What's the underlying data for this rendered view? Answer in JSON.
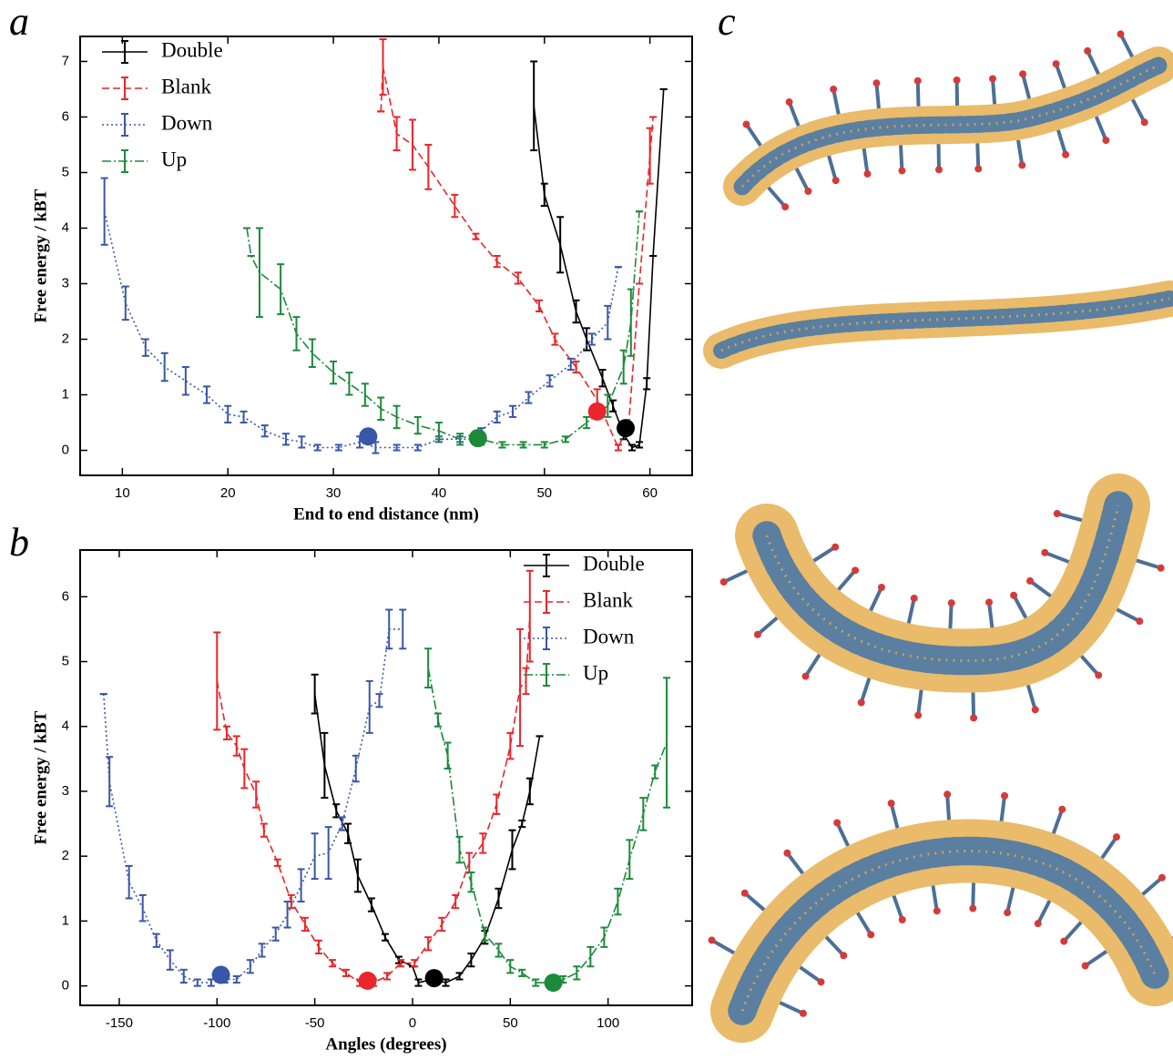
{
  "chart_data": [
    {
      "type": "line",
      "panel_label": "a",
      "xlabel": "End to end distance (nm)",
      "ylabel": "Free energy / kBT",
      "xlim": [
        6,
        64
      ],
      "ylim": [
        -0.45,
        7.45
      ],
      "xticks": [
        10,
        20,
        30,
        40,
        50,
        60
      ],
      "yticks": [
        0,
        1,
        2,
        3,
        4,
        5,
        6,
        7
      ],
      "legend": "upper left",
      "series": [
        {
          "name": "Double",
          "color": "#000000",
          "dash": "solid",
          "x": [
            49,
            50,
            51.5,
            53,
            54,
            55.5,
            56.5,
            57.5,
            58.3,
            59,
            59.7,
            60.3,
            61.3
          ],
          "values": [
            6.2,
            4.6,
            3.7,
            2.5,
            2.0,
            1.3,
            0.8,
            0.3,
            0.05,
            0.1,
            1.2,
            3.5,
            6.5
          ],
          "errors": [
            0.8,
            0.2,
            0.5,
            0.2,
            0.2,
            0.15,
            0.1,
            0.1,
            0.05,
            0.05,
            0.1,
            0,
            0
          ],
          "marker": {
            "x": 57.7,
            "y": 0.4
          }
        },
        {
          "name": "Blank",
          "color": "#e8262b",
          "dash": "dashed",
          "x": [
            34.5,
            34.7,
            36,
            37.5,
            39,
            41.5,
            43.5,
            45.5,
            47.5,
            49.5,
            51,
            53,
            55,
            57,
            58,
            59,
            60,
            60.3
          ],
          "values": [
            6.1,
            6.9,
            5.7,
            5.5,
            5.1,
            4.4,
            3.85,
            3.4,
            3.1,
            2.6,
            2.0,
            1.5,
            0.9,
            0.05,
            0.5,
            3.0,
            5.3,
            6.0
          ],
          "errors": [
            0,
            0.5,
            0.3,
            0.45,
            0.4,
            0.2,
            0.05,
            0.1,
            0.1,
            0.1,
            0.1,
            0.1,
            0.2,
            0.05,
            0,
            0,
            0.5,
            0
          ],
          "marker": {
            "x": 55,
            "y": 0.7
          }
        },
        {
          "name": "Down",
          "color": "#3a56a8",
          "dash": "dotted",
          "x": [
            8.3,
            10.3,
            12.2,
            14,
            16,
            18,
            20,
            21.5,
            23.5,
            25.5,
            27,
            28.5,
            30.5,
            32.5,
            34,
            36,
            38,
            40,
            42,
            44,
            45.5,
            47,
            48.5,
            50.5,
            52.5,
            54.5,
            56,
            57
          ],
          "values": [
            4.3,
            2.65,
            1.85,
            1.5,
            1.25,
            1.0,
            0.65,
            0.6,
            0.35,
            0.2,
            0.15,
            0.05,
            0.05,
            0.15,
            0.05,
            0.05,
            0.05,
            0.2,
            0.2,
            0.35,
            0.6,
            0.7,
            0.95,
            1.25,
            1.55,
            2.0,
            2.3,
            3.3
          ],
          "errors": [
            0.6,
            0.3,
            0.15,
            0.25,
            0.25,
            0.15,
            0.15,
            0.1,
            0.1,
            0.1,
            0.1,
            0.05,
            0.05,
            0.1,
            0.1,
            0.05,
            0.05,
            0.05,
            0.05,
            0.05,
            0.1,
            0.1,
            0.1,
            0.1,
            0.1,
            0.1,
            0.3,
            0
          ],
          "marker": {
            "x": 33.3,
            "y": 0.25
          }
        },
        {
          "name": "Up",
          "color": "#1d8a3a",
          "dash": "dashdot",
          "x": [
            21.8,
            22.2,
            23,
            25,
            26.5,
            28,
            30,
            31.5,
            33,
            34.5,
            36,
            38,
            40,
            42,
            44,
            46,
            48,
            50,
            52,
            54,
            56,
            57.5,
            58.2,
            59
          ],
          "values": [
            4.0,
            3.5,
            3.2,
            2.9,
            2.1,
            1.75,
            1.4,
            1.2,
            1.0,
            0.75,
            0.6,
            0.45,
            0.35,
            0.2,
            0.2,
            0.1,
            0.1,
            0.1,
            0.2,
            0.5,
            0.8,
            1.5,
            2.3,
            4.3
          ],
          "errors": [
            0,
            0,
            0.8,
            0.45,
            0.3,
            0.25,
            0.2,
            0.2,
            0.2,
            0.2,
            0.2,
            0.15,
            0.15,
            0.1,
            0.1,
            0.05,
            0.05,
            0.05,
            0.05,
            0.1,
            0.2,
            0.3,
            0.6,
            0
          ],
          "marker": {
            "x": 43.7,
            "y": 0.22
          }
        }
      ]
    },
    {
      "type": "line",
      "panel_label": "b",
      "xlabel": "Angles (degrees)",
      "ylabel": "Free energy / kBT",
      "xlim": [
        -170,
        143
      ],
      "ylim": [
        -0.3,
        6.72
      ],
      "xticks": [
        -150,
        -100,
        -50,
        0,
        50,
        100
      ],
      "yticks": [
        0,
        1,
        2,
        3,
        4,
        5,
        6
      ],
      "legend": "upper right",
      "series": [
        {
          "name": "Double",
          "color": "#000000",
          "dash": "solid",
          "x": [
            -50,
            -45,
            -39,
            -33,
            -28,
            -21,
            -14,
            -7,
            0,
            3,
            10,
            17,
            24,
            30,
            37,
            44,
            51,
            56,
            60,
            65
          ],
          "values": [
            4.5,
            3.4,
            2.7,
            2.35,
            1.7,
            1.25,
            0.75,
            0.4,
            0.3,
            0.05,
            0.1,
            0.05,
            0.15,
            0.4,
            0.75,
            1.35,
            2.1,
            2.5,
            3.0,
            3.85
          ],
          "errors": [
            0.3,
            0.5,
            0.1,
            0.15,
            0.25,
            0.1,
            0.05,
            0.05,
            0,
            0.05,
            0.05,
            0.05,
            0.05,
            0.1,
            0.1,
            0.15,
            0.3,
            0.05,
            0.2,
            0
          ],
          "marker": {
            "x": 11,
            "y": 0.12
          }
        },
        {
          "name": "Blank",
          "color": "#e8262b",
          "dash": "dashed",
          "x": [
            -100,
            -95,
            -90,
            -86,
            -80,
            -76,
            -69,
            -62,
            -55,
            -48,
            -41,
            -34,
            -27,
            -20,
            -13,
            -6,
            1,
            8,
            15,
            22,
            29,
            36,
            43,
            50,
            55,
            58,
            60
          ],
          "values": [
            4.7,
            3.9,
            3.7,
            3.35,
            2.95,
            2.4,
            1.9,
            1.3,
            0.95,
            0.6,
            0.35,
            0.2,
            0.05,
            0.05,
            0.15,
            0.35,
            0.35,
            0.65,
            0.95,
            1.3,
            1.9,
            2.2,
            2.8,
            3.7,
            4.6,
            4.7,
            5.7
          ],
          "errors": [
            0.75,
            0.1,
            0.15,
            0.3,
            0.2,
            0.1,
            0.05,
            0.1,
            0.1,
            0.1,
            0.05,
            0.05,
            0.05,
            0.05,
            0.05,
            0.05,
            0.05,
            0.1,
            0.1,
            0.1,
            0.15,
            0.15,
            0.15,
            0.2,
            0.9,
            0.2,
            0.7
          ],
          "marker": {
            "x": -23,
            "y": 0.08
          }
        },
        {
          "name": "Down",
          "color": "#3a56a8",
          "dash": "dotted",
          "x": [
            -158,
            -155,
            -145,
            -138,
            -131,
            -124,
            -117,
            -110,
            -103,
            -96,
            -90,
            -83,
            -77,
            -70,
            -64,
            -57,
            -50,
            -43,
            -36,
            -29,
            -22,
            -17,
            -12,
            -5
          ],
          "values": [
            4.5,
            3.15,
            1.6,
            1.2,
            0.7,
            0.4,
            0.15,
            0.05,
            0.05,
            0.1,
            0.1,
            0.3,
            0.55,
            0.8,
            1.1,
            1.55,
            2.0,
            2.05,
            2.5,
            3.35,
            4.3,
            4.4,
            5.5,
            5.5
          ],
          "errors": [
            0,
            0.38,
            0.25,
            0.2,
            0.1,
            0.15,
            0.1,
            0.05,
            0.05,
            0.05,
            0.05,
            0.1,
            0.1,
            0.1,
            0.2,
            0.25,
            0.35,
            0.4,
            0.1,
            0.2,
            0.4,
            0.1,
            0.3,
            0.3
          ],
          "marker": {
            "x": -98,
            "y": 0.17
          }
        },
        {
          "name": "Up",
          "color": "#1d8a3a",
          "dash": "dashdot",
          "x": [
            8,
            13,
            18,
            24,
            30,
            37,
            44,
            50,
            56,
            63,
            70,
            77,
            84,
            91,
            98,
            105,
            111,
            118,
            124,
            130
          ],
          "values": [
            4.9,
            4.1,
            3.55,
            2.1,
            1.6,
            0.8,
            0.55,
            0.3,
            0.2,
            0.05,
            0.05,
            0.1,
            0.2,
            0.45,
            0.75,
            1.3,
            1.95,
            2.65,
            3.3,
            3.75
          ],
          "errors": [
            0.3,
            0.1,
            0.2,
            0.2,
            0.15,
            0.1,
            0.1,
            0.1,
            0.05,
            0.05,
            0.05,
            0.05,
            0.1,
            0.15,
            0.15,
            0.2,
            0.3,
            0.25,
            0.1,
            1.0
          ],
          "marker": {
            "x": 72,
            "y": 0.05
          }
        }
      ]
    }
  ],
  "panel_c": {
    "label": "c"
  }
}
